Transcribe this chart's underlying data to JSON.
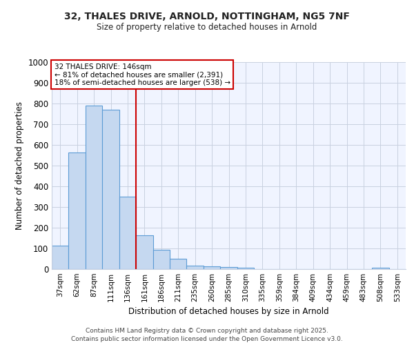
{
  "title_line1": "32, THALES DRIVE, ARNOLD, NOTTINGHAM, NG5 7NF",
  "title_line2": "Size of property relative to detached houses in Arnold",
  "xlabel": "Distribution of detached houses by size in Arnold",
  "ylabel": "Number of detached properties",
  "categories": [
    "37sqm",
    "62sqm",
    "87sqm",
    "111sqm",
    "136sqm",
    "161sqm",
    "186sqm",
    "211sqm",
    "235sqm",
    "260sqm",
    "285sqm",
    "310sqm",
    "335sqm",
    "359sqm",
    "384sqm",
    "409sqm",
    "434sqm",
    "459sqm",
    "483sqm",
    "508sqm",
    "533sqm"
  ],
  "values": [
    113,
    565,
    790,
    770,
    350,
    165,
    95,
    50,
    17,
    12,
    10,
    8,
    0,
    0,
    0,
    0,
    0,
    0,
    0,
    7,
    0
  ],
  "bar_color": "#c5d8f0",
  "bar_edge_color": "#5b9bd5",
  "bg_color": "#ffffff",
  "plot_bg_color": "#f0f4ff",
  "red_line_x": 4.5,
  "annotation_text": "32 THALES DRIVE: 146sqm\n← 81% of detached houses are smaller (2,391)\n18% of semi-detached houses are larger (538) →",
  "annotation_box_color": "#ffffff",
  "annotation_box_edge": "#cc0000",
  "ylim": [
    0,
    1000
  ],
  "yticks": [
    0,
    100,
    200,
    300,
    400,
    500,
    600,
    700,
    800,
    900,
    1000
  ],
  "footer_line1": "Contains HM Land Registry data © Crown copyright and database right 2025.",
  "footer_line2": "Contains public sector information licensed under the Open Government Licence v3.0.",
  "grid_color": "#c8d0e0"
}
